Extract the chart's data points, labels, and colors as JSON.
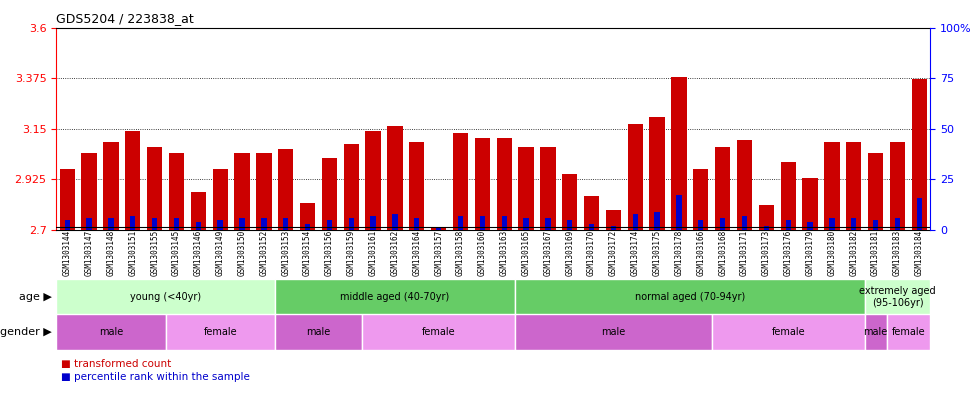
{
  "title": "GDS5204 / 223838_at",
  "samples": [
    "GSM1303144",
    "GSM1303147",
    "GSM1303148",
    "GSM1303151",
    "GSM1303155",
    "GSM1303145",
    "GSM1303146",
    "GSM1303149",
    "GSM1303150",
    "GSM1303152",
    "GSM1303153",
    "GSM1303154",
    "GSM1303156",
    "GSM1303159",
    "GSM1303161",
    "GSM1303162",
    "GSM1303164",
    "GSM1303157",
    "GSM1303158",
    "GSM1303160",
    "GSM1303163",
    "GSM1303165",
    "GSM1303167",
    "GSM1303169",
    "GSM1303170",
    "GSM1303172",
    "GSM1303174",
    "GSM1303175",
    "GSM1303178",
    "GSM1303166",
    "GSM1303168",
    "GSM1303171",
    "GSM1303173",
    "GSM1303176",
    "GSM1303179",
    "GSM1303180",
    "GSM1303182",
    "GSM1303181",
    "GSM1303183",
    "GSM1303184"
  ],
  "bar_values": [
    2.97,
    3.04,
    3.09,
    3.14,
    3.07,
    3.04,
    2.87,
    2.97,
    3.04,
    3.04,
    3.06,
    2.82,
    3.02,
    3.08,
    3.14,
    3.16,
    3.09,
    2.71,
    3.13,
    3.11,
    3.11,
    3.07,
    3.07,
    2.95,
    2.85,
    2.79,
    3.17,
    3.2,
    3.38,
    2.97,
    3.07,
    3.1,
    2.81,
    3.0,
    2.93,
    3.09,
    3.09,
    3.04,
    3.09,
    3.37
  ],
  "percentile_values": [
    5,
    6,
    6,
    7,
    6,
    6,
    4,
    5,
    6,
    6,
    6,
    3,
    5,
    6,
    7,
    8,
    6,
    1,
    7,
    7,
    7,
    6,
    6,
    5,
    3,
    2,
    8,
    9,
    17,
    5,
    6,
    7,
    2,
    5,
    4,
    6,
    6,
    5,
    6,
    16
  ],
  "ylim_left": [
    2.7,
    3.6
  ],
  "ylim_right": [
    0,
    100
  ],
  "yticks_left": [
    2.7,
    2.925,
    3.15,
    3.375,
    3.6
  ],
  "yticks_right": [
    0,
    25,
    50,
    75,
    100
  ],
  "bar_color": "#cc0000",
  "percentile_color": "#0000cc",
  "bg_color": "#ffffff",
  "age_groups": [
    {
      "label": "young (<40yr)",
      "start": 0,
      "end": 10,
      "color": "#ccffcc"
    },
    {
      "label": "middle aged (40-70yr)",
      "start": 10,
      "end": 21,
      "color": "#66cc66"
    },
    {
      "label": "normal aged (70-94yr)",
      "start": 21,
      "end": 37,
      "color": "#66cc66"
    },
    {
      "label": "extremely aged\n(95-106yr)",
      "start": 37,
      "end": 40,
      "color": "#ccffcc"
    }
  ],
  "gender_groups": [
    {
      "label": "male",
      "start": 0,
      "end": 5,
      "color": "#cc66cc"
    },
    {
      "label": "female",
      "start": 5,
      "end": 10,
      "color": "#ee99ee"
    },
    {
      "label": "male",
      "start": 10,
      "end": 14,
      "color": "#cc66cc"
    },
    {
      "label": "female",
      "start": 14,
      "end": 21,
      "color": "#ee99ee"
    },
    {
      "label": "male",
      "start": 21,
      "end": 30,
      "color": "#cc66cc"
    },
    {
      "label": "female",
      "start": 30,
      "end": 37,
      "color": "#ee99ee"
    },
    {
      "label": "male",
      "start": 37,
      "end": 38,
      "color": "#cc66cc"
    },
    {
      "label": "female",
      "start": 38,
      "end": 40,
      "color": "#ee99ee"
    }
  ]
}
